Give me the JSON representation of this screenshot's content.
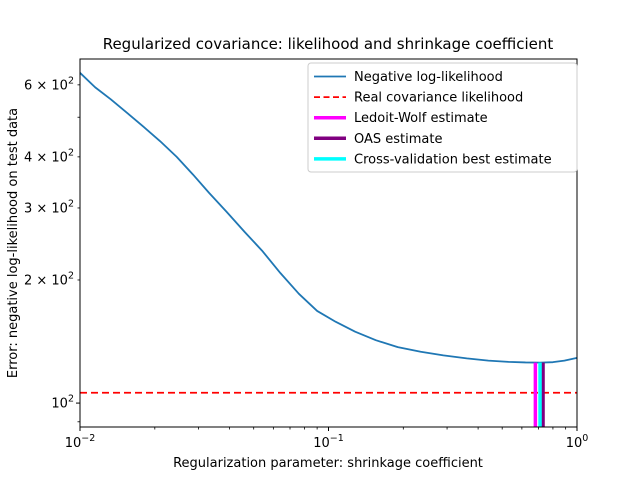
{
  "title": "Regularized covariance: likelihood and shrinkage coefficient",
  "xlabel": "Regularization parameter: shrinkage coefficient",
  "ylabel": "Error: negative log-likelihood on test data",
  "colors": {
    "curve": "#1f77b4",
    "real_likelihood": "#ff0000",
    "ledoit_wolf": "#ff00ff",
    "oas": "#800080",
    "cross_validation": "#00ffff",
    "axes": "#000000",
    "legend_border": "#cccccc",
    "background": "#ffffff"
  },
  "axes": {
    "x_scale": "log",
    "y_scale": "log",
    "xlim": [
      0.01,
      1.0
    ],
    "ylim": [
      87.4,
      694.0
    ],
    "grid": false,
    "x_major_ticks": [
      {
        "value": 0.01,
        "base": "10",
        "exp": "−2"
      },
      {
        "value": 0.1,
        "base": "10",
        "exp": "−1"
      },
      {
        "value": 1.0,
        "base": "10",
        "exp": "0"
      }
    ],
    "x_minor_ticks": [
      0.02,
      0.03,
      0.04,
      0.05,
      0.06,
      0.07,
      0.08,
      0.09,
      0.2,
      0.3,
      0.4,
      0.5,
      0.6,
      0.7,
      0.8,
      0.9
    ],
    "y_major_ticks": [
      {
        "value": 100,
        "prefix": "",
        "base": "10",
        "exp": "2"
      }
    ],
    "y_minor_labeled_ticks": [
      {
        "value": 200,
        "prefix": "2 × ",
        "base": "10",
        "exp": "2"
      },
      {
        "value": 300,
        "prefix": "3 × ",
        "base": "10",
        "exp": "2"
      },
      {
        "value": 400,
        "prefix": "4 × ",
        "base": "10",
        "exp": "2"
      },
      {
        "value": 600,
        "prefix": "6 × ",
        "base": "10",
        "exp": "2"
      }
    ],
    "y_minor_unlabeled_ticks": [
      90,
      500
    ]
  },
  "chart_data": {
    "type": "line",
    "title": "Regularized covariance: likelihood and shrinkage coefficient",
    "xlabel": "Regularization parameter: shrinkage coefficient",
    "ylabel": "Error: negative log-likelihood on test data",
    "x_scale": "log",
    "y_scale": "log",
    "xlim": [
      0.01,
      1.0
    ],
    "ylim": [
      87.4,
      694.0
    ],
    "legend_position": "upper right",
    "series": [
      {
        "name": "Negative log-likelihood",
        "kind": "curve",
        "color": "#1f77b4",
        "linestyle": "solid",
        "linewidth": 1.8,
        "points": [
          [
            0.01,
            642
          ],
          [
            0.0115,
            592
          ],
          [
            0.0133,
            553
          ],
          [
            0.0155,
            512
          ],
          [
            0.018,
            474
          ],
          [
            0.021,
            437
          ],
          [
            0.0245,
            400
          ],
          [
            0.0285,
            362
          ],
          [
            0.033,
            327
          ],
          [
            0.039,
            293
          ],
          [
            0.046,
            262
          ],
          [
            0.054,
            236
          ],
          [
            0.064,
            208
          ],
          [
            0.076,
            185
          ],
          [
            0.09,
            168
          ],
          [
            0.107,
            158
          ],
          [
            0.128,
            149.5
          ],
          [
            0.155,
            142.5
          ],
          [
            0.19,
            137
          ],
          [
            0.235,
            133.5
          ],
          [
            0.29,
            130.8
          ],
          [
            0.36,
            128.6
          ],
          [
            0.44,
            127.0
          ],
          [
            0.53,
            126.1
          ],
          [
            0.62,
            125.7
          ],
          [
            0.71,
            125.6
          ],
          [
            0.8,
            125.9
          ],
          [
            0.89,
            127.0
          ],
          [
            1.0,
            129.0
          ]
        ]
      },
      {
        "name": "Real covariance likelihood",
        "kind": "hline",
        "color": "#ff0000",
        "linestyle": "dashed",
        "linewidth": 1.8,
        "y": 106
      },
      {
        "name": "Ledoit-Wolf estimate",
        "kind": "vline",
        "color": "#ff00ff",
        "linestyle": "solid",
        "linewidth": 3.5,
        "x": 0.68,
        "ymin": 87.4,
        "ymax": 125.6
      },
      {
        "name": "OAS estimate",
        "kind": "vline",
        "color": "#800080",
        "linestyle": "solid",
        "linewidth": 3.5,
        "x": 0.73,
        "ymin": 87.4,
        "ymax": 125.6
      },
      {
        "name": "Cross-validation best estimate",
        "kind": "vline",
        "color": "#00ffff",
        "linestyle": "solid",
        "linewidth": 3.5,
        "x": 0.71,
        "ymin": 87.4,
        "ymax": 125.6
      }
    ]
  },
  "legend": {
    "entries": [
      {
        "label": "Negative log-likelihood",
        "color": "#1f77b4",
        "dash": "none",
        "linewidth": 1.8
      },
      {
        "label": "Real covariance likelihood",
        "color": "#ff0000",
        "dash": "6,3.5",
        "linewidth": 1.8
      },
      {
        "label": "Ledoit-Wolf estimate",
        "color": "#ff00ff",
        "dash": "none",
        "linewidth": 3.5
      },
      {
        "label": "OAS estimate",
        "color": "#800080",
        "dash": "none",
        "linewidth": 3.5
      },
      {
        "label": "Cross-validation best estimate",
        "color": "#00ffff",
        "dash": "none",
        "linewidth": 3.5
      }
    ]
  }
}
